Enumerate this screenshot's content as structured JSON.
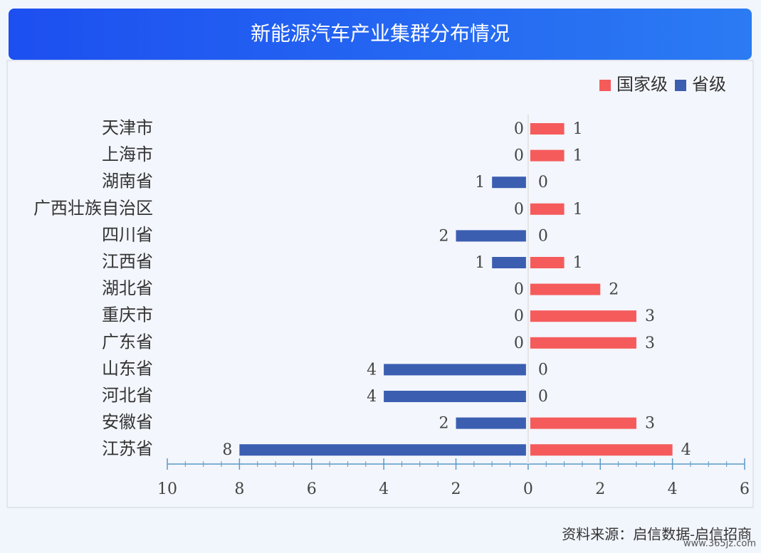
{
  "chart_data": {
    "type": "diverging_bar",
    "title": "新能源汽车产业集群分布情况",
    "categories": [
      "天津市",
      "上海市",
      "湖南省",
      "广西壮族自治区",
      "四川省",
      "江西省",
      "湖北省",
      "重庆市",
      "广东省",
      "山东省",
      "河北省",
      "安徽省",
      "江苏省"
    ],
    "series": [
      {
        "name": "国家级",
        "color": "#f55b5b",
        "values": [
          1,
          1,
          0,
          1,
          0,
          1,
          2,
          3,
          3,
          0,
          0,
          3,
          4
        ]
      },
      {
        "name": "省级",
        "color": "#3b5eb1",
        "values": [
          0,
          0,
          -1,
          0,
          -2,
          -1,
          0,
          0,
          0,
          -4,
          -4,
          -2,
          -8
        ],
        "value_labels": [
          "0",
          "0",
          "1",
          "0",
          "2",
          "1",
          "0",
          "0",
          "0",
          "4",
          "4",
          "2",
          "8"
        ]
      }
    ],
    "xlim": [
      -10,
      6
    ],
    "xticks": [
      {
        "value": -10,
        "label": "10"
      },
      {
        "value": -8,
        "label": "8"
      },
      {
        "value": -6,
        "label": "6"
      },
      {
        "value": -4,
        "label": "4"
      },
      {
        "value": -2,
        "label": "2"
      },
      0,
      2,
      4,
      6
    ],
    "legend": "top-right",
    "source": "资料来源：启信数据-启信招商",
    "watermark": "www.365jz.com"
  }
}
